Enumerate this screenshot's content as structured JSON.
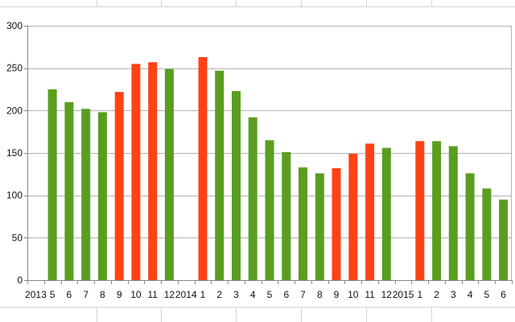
{
  "chart_data": {
    "type": "bar",
    "categories": [
      "2013",
      "5",
      "6",
      "7",
      "8",
      "9",
      "10",
      "11",
      "12",
      "2014",
      "1",
      "2",
      "3",
      "4",
      "5",
      "6",
      "7",
      "8",
      "9",
      "10",
      "11",
      "12",
      "2015",
      "1",
      "2",
      "3",
      "4",
      "5",
      "6"
    ],
    "values": [
      null,
      225,
      210,
      202,
      198,
      222,
      255,
      257,
      249,
      null,
      263,
      247,
      223,
      192,
      165,
      151,
      133,
      126,
      132,
      149,
      161,
      156,
      null,
      164,
      164,
      158,
      126,
      108,
      95
    ],
    "bar_colors": [
      null,
      "#5a9e1f",
      "#5a9e1f",
      "#5a9e1f",
      "#5a9e1f",
      "#ff4216",
      "#ff4216",
      "#ff4216",
      "#5a9e1f",
      null,
      "#ff4216",
      "#5a9e1f",
      "#5a9e1f",
      "#5a9e1f",
      "#5a9e1f",
      "#5a9e1f",
      "#5a9e1f",
      "#5a9e1f",
      "#ff4216",
      "#ff4216",
      "#ff4216",
      "#5a9e1f",
      null,
      "#ff4216",
      "#5a9e1f",
      "#5a9e1f",
      "#5a9e1f",
      "#5a9e1f",
      "#5a9e1f"
    ],
    "y_ticks": [
      "0",
      "50",
      "100",
      "150",
      "200",
      "250",
      "300"
    ],
    "ylim": [
      0,
      300
    ],
    "grid": true,
    "legend": false,
    "title": "",
    "xlabel": "",
    "ylabel": ""
  },
  "colors": {
    "green": "#5a9e1f",
    "red": "#ff4216",
    "gridline": "#b3b3b3",
    "sheet_line": "#d4d4d4"
  }
}
